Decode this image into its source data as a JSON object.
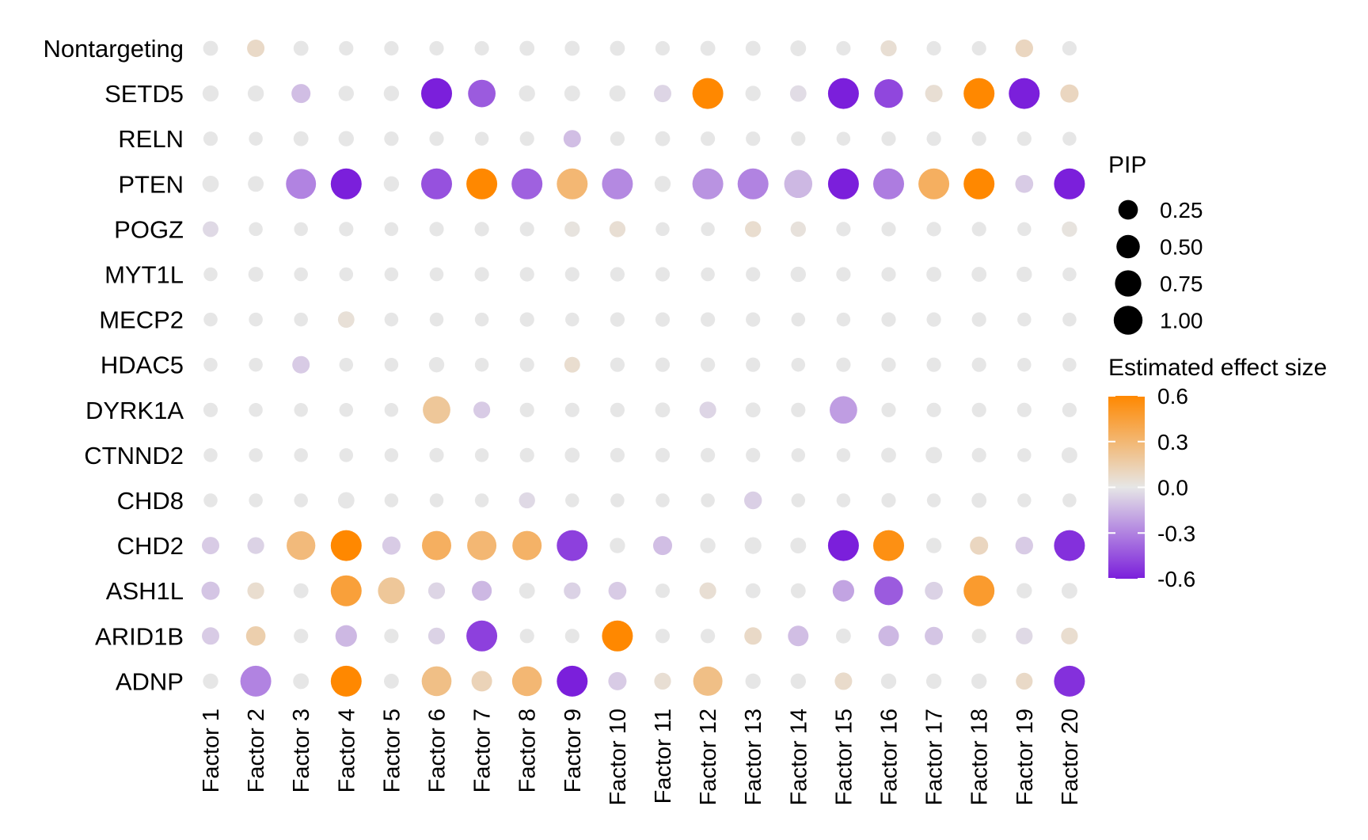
{
  "chart_data": {
    "type": "dotplot",
    "title": "",
    "xlabel": "",
    "ylabel": "",
    "rows": [
      "Nontargeting",
      "SETD5",
      "RELN",
      "PTEN",
      "POGZ",
      "MYT1L",
      "MECP2",
      "HDAC5",
      "DYRK1A",
      "CTNND2",
      "CHD8",
      "CHD2",
      "ASH1L",
      "ARID1B",
      "ADNP"
    ],
    "columns": [
      "Factor 1",
      "Factor 2",
      "Factor 3",
      "Factor 4",
      "Factor 5",
      "Factor 6",
      "Factor 7",
      "Factor 8",
      "Factor 9",
      "Factor 10",
      "Factor 11",
      "Factor 12",
      "Factor 13",
      "Factor 14",
      "Factor 15",
      "Factor 16",
      "Factor 17",
      "Factor 18",
      "Factor 19",
      "Factor 20"
    ],
    "pip": [
      [
        0.05,
        0.12,
        0.05,
        0.04,
        0.04,
        0.04,
        0.04,
        0.05,
        0.05,
        0.05,
        0.04,
        0.05,
        0.05,
        0.07,
        0.04,
        0.08,
        0.04,
        0.04,
        0.13,
        0.04
      ],
      [
        0.08,
        0.08,
        0.18,
        0.06,
        0.06,
        1.0,
        0.7,
        0.08,
        0.07,
        0.08,
        0.12,
        1.0,
        0.06,
        0.09,
        1.0,
        0.8,
        0.12,
        1.0,
        1.0,
        0.15
      ],
      [
        0.04,
        0.03,
        0.05,
        0.06,
        0.04,
        0.04,
        0.03,
        0.04,
        0.12,
        0.04,
        0.05,
        0.04,
        0.04,
        0.04,
        0.03,
        0.04,
        0.04,
        0.04,
        0.04,
        0.03
      ],
      [
        0.09,
        0.07,
        0.92,
        1.0,
        0.06,
        1.0,
        1.0,
        1.0,
        1.0,
        1.0,
        0.08,
        1.0,
        1.0,
        0.75,
        1.0,
        1.0,
        1.0,
        1.0,
        0.14,
        1.0
      ],
      [
        0.07,
        0.03,
        0.03,
        0.04,
        0.03,
        0.04,
        0.04,
        0.04,
        0.06,
        0.08,
        0.03,
        0.03,
        0.08,
        0.06,
        0.04,
        0.04,
        0.04,
        0.04,
        0.03,
        0.06
      ],
      [
        0.03,
        0.05,
        0.03,
        0.03,
        0.03,
        0.03,
        0.04,
        0.04,
        0.04,
        0.04,
        0.04,
        0.03,
        0.04,
        0.06,
        0.04,
        0.04,
        0.05,
        0.05,
        0.06,
        0.03
      ],
      [
        0.03,
        0.03,
        0.03,
        0.09,
        0.03,
        0.03,
        0.03,
        0.04,
        0.03,
        0.04,
        0.04,
        0.04,
        0.04,
        0.03,
        0.03,
        0.04,
        0.04,
        0.04,
        0.03,
        0.03
      ],
      [
        0.03,
        0.03,
        0.12,
        0.03,
        0.03,
        0.06,
        0.03,
        0.04,
        0.07,
        0.04,
        0.04,
        0.04,
        0.04,
        0.03,
        0.04,
        0.04,
        0.04,
        0.04,
        0.03,
        0.03
      ],
      [
        0.04,
        0.03,
        0.03,
        0.03,
        0.03,
        0.7,
        0.1,
        0.04,
        0.04,
        0.04,
        0.05,
        0.1,
        0.05,
        0.04,
        0.7,
        0.04,
        0.04,
        0.04,
        0.04,
        0.04
      ],
      [
        0.03,
        0.03,
        0.03,
        0.03,
        0.03,
        0.04,
        0.03,
        0.04,
        0.05,
        0.04,
        0.04,
        0.04,
        0.04,
        0.03,
        0.03,
        0.05,
        0.09,
        0.04,
        0.03,
        0.07
      ],
      [
        0.03,
        0.03,
        0.03,
        0.09,
        0.03,
        0.03,
        0.03,
        0.08,
        0.03,
        0.03,
        0.03,
        0.03,
        0.13,
        0.03,
        0.03,
        0.04,
        0.03,
        0.05,
        0.03,
        0.03
      ],
      [
        0.12,
        0.1,
        0.8,
        1.0,
        0.15,
        0.85,
        0.85,
        0.85,
        1.0,
        0.06,
        0.18,
        0.06,
        0.1,
        0.07,
        1.0,
        1.0,
        0.06,
        0.15,
        0.13,
        1.0
      ],
      [
        0.15,
        0.1,
        0.05,
        1.0,
        0.65,
        0.1,
        0.22,
        0.07,
        0.1,
        0.14,
        0.04,
        0.1,
        0.05,
        0.05,
        0.3,
        0.8,
        0.14,
        1.0,
        0.06,
        0.07
      ],
      [
        0.12,
        0.2,
        0.04,
        0.3,
        0.04,
        0.1,
        1.0,
        0.04,
        0.04,
        1.0,
        0.04,
        0.04,
        0.12,
        0.25,
        0.05,
        0.25,
        0.15,
        0.04,
        0.1,
        0.1
      ],
      [
        0.06,
        1.0,
        0.07,
        1.0,
        0.05,
        0.9,
        0.25,
        0.9,
        1.0,
        0.15,
        0.1,
        0.85,
        0.06,
        0.06,
        0.12,
        0.06,
        0.06,
        0.06,
        0.1,
        1.0
      ]
    ],
    "effect": [
      [
        0,
        0.08,
        0,
        0,
        0,
        0,
        0,
        0,
        0,
        0,
        0,
        0,
        0,
        0,
        0,
        0.05,
        0,
        0,
        0.1,
        0
      ],
      [
        0,
        0,
        -0.12,
        0,
        0,
        -0.6,
        -0.42,
        0,
        0,
        0,
        -0.05,
        0.6,
        0,
        -0.03,
        -0.6,
        -0.48,
        0.05,
        0.6,
        -0.6,
        0.1
      ],
      [
        0,
        0,
        0,
        0,
        0,
        0,
        0,
        0,
        -0.12,
        0,
        0,
        0,
        0,
        0,
        0,
        0,
        0,
        0,
        0,
        0
      ],
      [
        0,
        0,
        -0.3,
        -0.6,
        0,
        -0.45,
        0.6,
        -0.4,
        0.3,
        -0.28,
        0,
        -0.25,
        -0.3,
        -0.14,
        -0.6,
        -0.32,
        0.35,
        0.6,
        -0.08,
        -0.6
      ],
      [
        -0.04,
        0,
        0,
        0,
        0,
        0,
        0,
        0,
        0.02,
        0.05,
        0,
        0,
        0.06,
        0.03,
        0,
        0,
        0,
        0,
        0,
        0.02
      ],
      [
        0,
        0,
        0,
        0,
        0,
        0,
        0,
        0,
        0,
        0,
        0,
        0,
        0,
        0,
        0,
        0,
        0,
        0,
        0,
        0
      ],
      [
        0,
        0,
        0,
        0.04,
        0,
        0,
        0,
        0,
        0,
        0,
        0,
        0,
        0,
        0,
        0,
        0,
        0,
        0,
        0,
        0
      ],
      [
        0,
        0,
        -0.08,
        0,
        0,
        0,
        0,
        0,
        0.06,
        0,
        0,
        0,
        0,
        0,
        0,
        0,
        0,
        0,
        0,
        0
      ],
      [
        0,
        0,
        0,
        0,
        0,
        0.2,
        -0.08,
        0,
        0,
        0,
        0,
        -0.05,
        0,
        0,
        -0.22,
        0,
        0,
        0,
        0,
        0
      ],
      [
        0,
        0,
        0,
        0,
        0,
        0,
        0,
        0,
        0,
        0,
        0,
        0,
        0,
        0,
        0,
        0,
        0,
        0,
        0,
        0
      ],
      [
        0,
        0,
        0,
        0,
        0,
        0,
        0,
        -0.04,
        0,
        0,
        0,
        0,
        -0.07,
        0,
        0,
        0,
        0,
        0,
        0,
        0
      ],
      [
        -0.08,
        -0.06,
        0.28,
        0.6,
        -0.08,
        0.35,
        0.3,
        0.33,
        -0.5,
        0,
        -0.12,
        0,
        0,
        0,
        -0.6,
        0.55,
        0,
        0.1,
        -0.08,
        -0.55
      ],
      [
        -0.1,
        0.06,
        0,
        0.45,
        0.2,
        -0.05,
        -0.14,
        0,
        -0.06,
        -0.08,
        0,
        0.05,
        0,
        0,
        -0.2,
        -0.42,
        -0.06,
        0.48,
        0,
        0
      ],
      [
        -0.08,
        0.15,
        0,
        -0.14,
        0,
        -0.06,
        -0.5,
        0,
        0,
        0.6,
        0,
        0,
        0.08,
        -0.12,
        0,
        -0.14,
        -0.1,
        0,
        -0.04,
        0.06
      ],
      [
        0,
        -0.3,
        0,
        0.6,
        0,
        0.25,
        0.12,
        0.3,
        -0.6,
        -0.08,
        0.05,
        0.25,
        0,
        0,
        0.07,
        0,
        0,
        0,
        0.08,
        -0.55
      ]
    ],
    "size_legend": {
      "title": "PIP",
      "values": [
        0.25,
        0.5,
        0.75,
        1.0
      ],
      "labels": [
        "0.25",
        "0.50",
        "0.75",
        "1.00"
      ]
    },
    "color_legend": {
      "title": "Estimated effect size",
      "range": [
        -0.6,
        0.6
      ],
      "ticks": [
        0.6,
        0.3,
        0.0,
        -0.3,
        -0.6
      ],
      "tick_labels": [
        "0.6",
        "0.3",
        "0.0",
        "-0.3",
        "-0.6"
      ],
      "low_color": "#7b1fdb",
      "mid_color": "#e6e6e6",
      "high_color": "#ff8800"
    },
    "grid": false,
    "legend_position": "right"
  }
}
